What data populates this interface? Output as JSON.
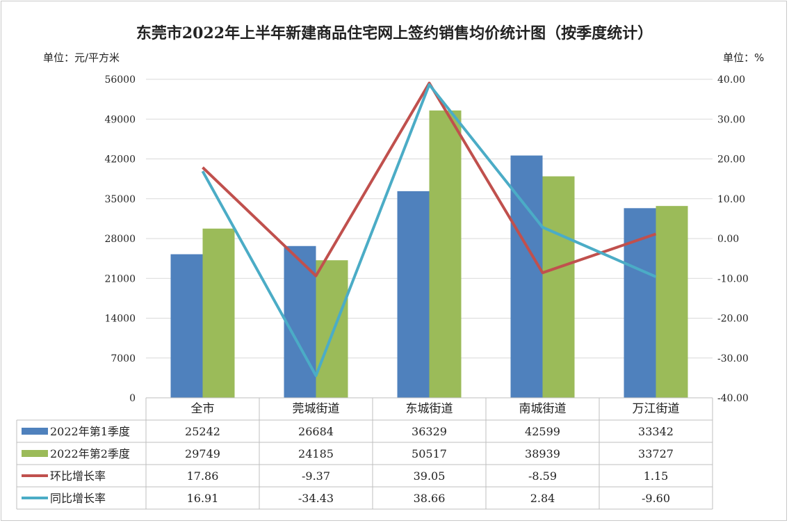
{
  "chart_data": {
    "type": "bar",
    "title": "东莞市2022年上半年新建商品住宅网上签约销售均价统计图（按季度统计）",
    "y_left_unit": "单位：元/平方米",
    "y_right_unit": "单位：%",
    "categories": [
      "全市",
      "莞城街道",
      "东城街道",
      "南城街道",
      "万江街道"
    ],
    "ylim_left": [
      0,
      56000
    ],
    "y_left_ticks": [
      "0",
      "7000",
      "14000",
      "21000",
      "28000",
      "35000",
      "42000",
      "49000",
      "56000"
    ],
    "ylim_right": [
      -40,
      40
    ],
    "y_right_ticks": [
      "-40.00",
      "-30.00",
      "-20.00",
      "-10.00",
      "0.00",
      "10.00",
      "20.00",
      "30.00",
      "40.00"
    ],
    "bar_series": [
      {
        "name": "2022年第1季度",
        "color": "#4f81bd",
        "values": [
          25242,
          26684,
          36329,
          42599,
          33342
        ]
      },
      {
        "name": "2022年第2季度",
        "color": "#9bbb59",
        "values": [
          29749,
          24185,
          50517,
          38939,
          33727
        ]
      }
    ],
    "line_series": [
      {
        "name": "环比增长率",
        "color": "#c0504d",
        "values": [
          17.86,
          -9.37,
          39.05,
          -8.59,
          1.15
        ]
      },
      {
        "name": "同比增长率",
        "color": "#4bacc6",
        "values": [
          16.91,
          -34.43,
          38.66,
          2.84,
          -9.6
        ]
      }
    ],
    "table_values": [
      [
        "25242",
        "26684",
        "36329",
        "42599",
        "33342"
      ],
      [
        "29749",
        "24185",
        "50517",
        "38939",
        "33727"
      ],
      [
        "17.86",
        "-9.37",
        "39.05",
        "-8.59",
        "1.15"
      ],
      [
        "16.91",
        "-34.43",
        "38.66",
        "2.84",
        "-9.60"
      ]
    ],
    "legend_placement": "data-table-bottom",
    "grid": true
  }
}
